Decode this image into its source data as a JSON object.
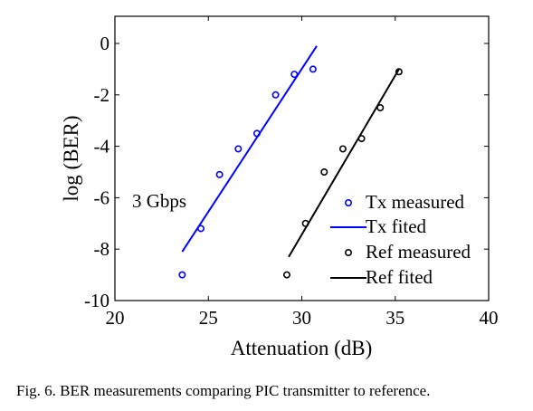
{
  "caption": "Fig. 6. BER measurements comparing PIC transmitter to reference.",
  "chart_data": {
    "type": "scatter",
    "title": "",
    "xlabel": "Attenuation (dB)",
    "ylabel": "log (BER)",
    "xlim": [
      20,
      40
    ],
    "ylim": [
      -10,
      0.8
    ],
    "xticks": [
      20,
      25,
      30,
      35,
      40
    ],
    "yticks": [
      0,
      -2,
      -4,
      -6,
      -8,
      -10
    ],
    "grid": false,
    "legend_position": "bottom-right",
    "annotation": "3 Gbps",
    "series": [
      {
        "name": "Tx measured",
        "kind": "markers",
        "marker": "circle-open",
        "color": "#0000ff",
        "x": [
          23.6,
          24.6,
          25.6,
          26.6,
          27.6,
          28.6,
          29.6,
          30.6
        ],
        "y": [
          -9.0,
          -7.2,
          -5.1,
          -4.1,
          -3.5,
          -2.0,
          -1.2,
          -1.0
        ]
      },
      {
        "name": "Tx fited",
        "kind": "line",
        "color": "#0000ff",
        "x": [
          23.6,
          30.8
        ],
        "y": [
          -8.1,
          -0.1
        ]
      },
      {
        "name": "Ref measured",
        "kind": "markers",
        "marker": "circle-open",
        "color": "#000000",
        "x": [
          29.2,
          30.2,
          31.2,
          32.2,
          33.2,
          34.2,
          35.2
        ],
        "y": [
          -9.0,
          -7.0,
          -5.0,
          -4.1,
          -3.7,
          -2.5,
          -1.1
        ]
      },
      {
        "name": "Ref fited",
        "kind": "line",
        "color": "#000000",
        "x": [
          29.3,
          35.2
        ],
        "y": [
          -8.3,
          -1.0
        ]
      }
    ]
  }
}
